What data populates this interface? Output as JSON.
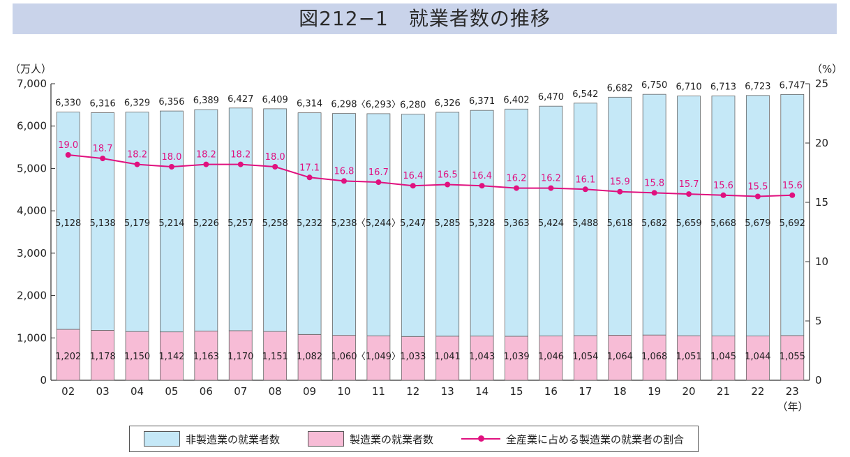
{
  "title": "図212−1　就業者数の推移",
  "chart_data": {
    "type": "bar",
    "stacked": true,
    "categories": [
      "02",
      "03",
      "04",
      "05",
      "06",
      "07",
      "08",
      "09",
      "10",
      "11",
      "12",
      "13",
      "14",
      "15",
      "16",
      "17",
      "18",
      "19",
      "20",
      "21",
      "22",
      "23"
    ],
    "total_labels": [
      "6,330",
      "6,316",
      "6,329",
      "6,356",
      "6,389",
      "6,427",
      "6,409",
      "6,314",
      "6,298",
      "〈6,293〉",
      "6,280",
      "6,326",
      "6,371",
      "6,402",
      "6,470",
      "6,542",
      "6,682",
      "6,750",
      "6,710",
      "6,713",
      "6,723",
      "6,747"
    ],
    "series": [
      {
        "name": "製造業の就業者数",
        "color": "#f7bcd6",
        "values": [
          1202,
          1178,
          1150,
          1142,
          1163,
          1170,
          1151,
          1082,
          1060,
          1049,
          1033,
          1041,
          1043,
          1039,
          1046,
          1054,
          1064,
          1068,
          1051,
          1045,
          1044,
          1055
        ],
        "labels": [
          "1,202",
          "1,178",
          "1,150",
          "1,142",
          "1,163",
          "1,170",
          "1,151",
          "1,082",
          "1,060",
          "〈1,049〉",
          "1,033",
          "1,041",
          "1,043",
          "1,039",
          "1,046",
          "1,054",
          "1,064",
          "1,068",
          "1,051",
          "1,045",
          "1,044",
          "1,055"
        ]
      },
      {
        "name": "非製造業の就業者数",
        "color": "#c5e8f7",
        "values": [
          5128,
          5138,
          5179,
          5214,
          5226,
          5257,
          5258,
          5232,
          5238,
          5244,
          5247,
          5285,
          5328,
          5363,
          5424,
          5488,
          5618,
          5682,
          5659,
          5668,
          5679,
          5692
        ],
        "labels": [
          "5,128",
          "5,138",
          "5,179",
          "5,214",
          "5,226",
          "5,257",
          "5,258",
          "5,232",
          "5,238",
          "〈5,244〉",
          "5,247",
          "5,285",
          "5,328",
          "5,363",
          "5,424",
          "5,488",
          "5,618",
          "5,682",
          "5,659",
          "5,668",
          "5,679",
          "5,692"
        ]
      }
    ],
    "line": {
      "name": "全産業に占める製造業の就業者の割合",
      "color": "#e0117f",
      "axis": "right",
      "values": [
        19.0,
        18.7,
        18.2,
        18.0,
        18.2,
        18.2,
        18.0,
        17.1,
        16.8,
        16.7,
        16.4,
        16.5,
        16.4,
        16.2,
        16.2,
        16.1,
        15.9,
        15.8,
        15.7,
        15.6,
        15.5,
        15.6
      ]
    },
    "y_left": {
      "unit": "（万人）",
      "min": 0,
      "max": 7000,
      "ticks": [
        "0",
        "1,000",
        "2,000",
        "3,000",
        "4,000",
        "5,000",
        "6,000",
        "7,000"
      ]
    },
    "y_right": {
      "unit": "（%）",
      "min": 0,
      "max": 25,
      "ticks": [
        "0",
        "5",
        "10",
        "15",
        "20",
        "25"
      ]
    },
    "x_unit": "（年）",
    "legend": [
      "非製造業の就業者数",
      "製造業の就業者数",
      "全産業に占める製造業の就業者の割合"
    ],
    "legend_position": "bottom",
    "grid": false
  }
}
